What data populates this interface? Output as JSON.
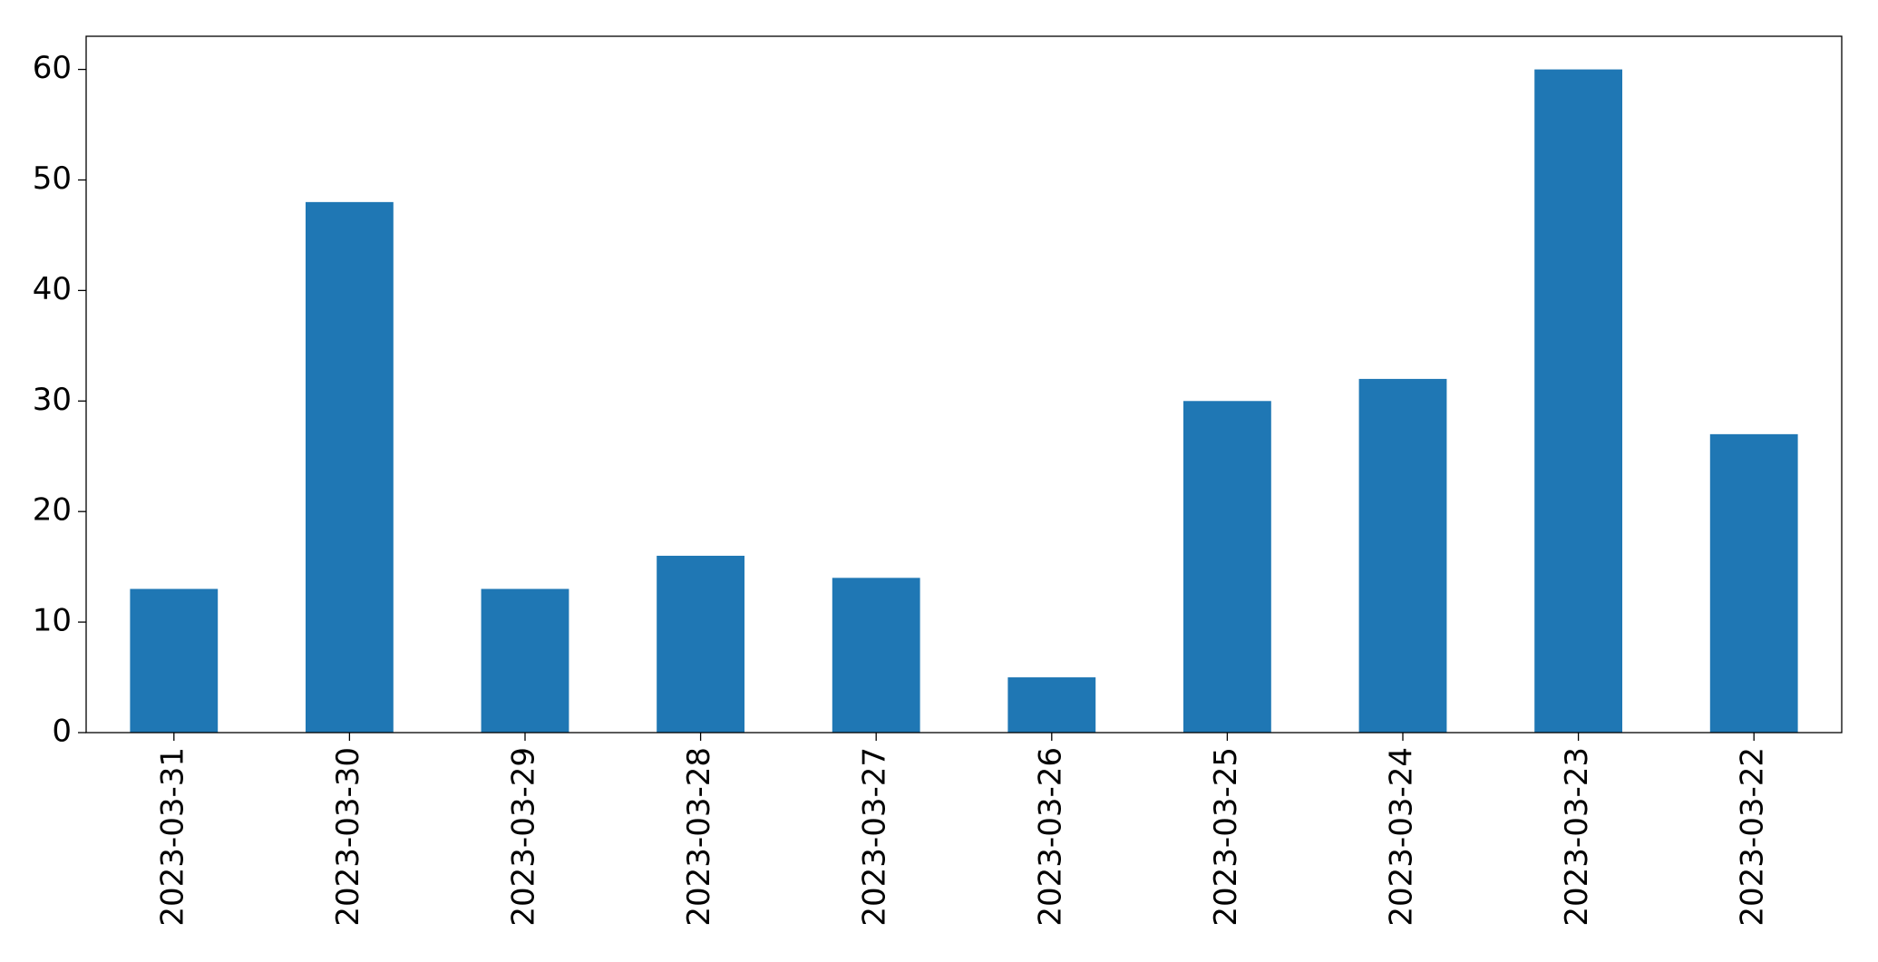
{
  "chart_data": {
    "type": "bar",
    "categories": [
      "2023-03-31",
      "2023-03-30",
      "2023-03-29",
      "2023-03-28",
      "2023-03-27",
      "2023-03-26",
      "2023-03-25",
      "2023-03-24",
      "2023-03-23",
      "2023-03-22"
    ],
    "values": [
      13,
      48,
      13,
      16,
      14,
      5,
      30,
      32,
      60,
      27
    ],
    "color": "#1f77b4",
    "ylim": [
      0,
      63
    ],
    "yticks": [
      0,
      10,
      20,
      30,
      40,
      50,
      60
    ],
    "grid": false
  }
}
